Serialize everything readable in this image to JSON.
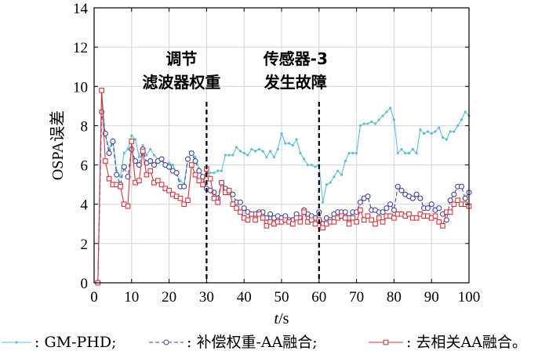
{
  "chart_data": {
    "type": "line",
    "xlabel_italic": "t",
    "xlabel_unit": "/s",
    "ylabel": "OSPA误差",
    "xlim": [
      0,
      100
    ],
    "ylim": [
      0,
      14
    ],
    "xticks": [
      0,
      10,
      20,
      30,
      40,
      50,
      60,
      70,
      80,
      90,
      100
    ],
    "yticks": [
      0,
      2,
      4,
      6,
      8,
      10,
      12,
      14
    ],
    "grid": true,
    "annotations": [
      {
        "lines": [
          "调节",
          "滤波器权重"
        ],
        "x_line": 30
      },
      {
        "lines": [
          "传感器-3",
          "发生故障"
        ],
        "x_line": 60
      }
    ],
    "legend_position": "bottom",
    "series": [
      {
        "name": "GM-PHD",
        "color": "#5bc0dc",
        "marker": "dot",
        "values": [
          [
            1,
            0
          ],
          [
            2,
            9.8
          ],
          [
            3,
            7.5
          ],
          [
            4,
            6.8
          ],
          [
            5,
            7.3
          ],
          [
            6,
            5.7
          ],
          [
            7,
            5.4
          ],
          [
            8,
            6.6
          ],
          [
            9,
            6.8
          ],
          [
            10,
            7.5
          ],
          [
            11,
            7.3
          ],
          [
            12,
            6.4
          ],
          [
            13,
            7.0
          ],
          [
            14,
            6.5
          ],
          [
            15,
            6.8
          ],
          [
            16,
            6.5
          ],
          [
            17,
            6.3
          ],
          [
            18,
            6.2
          ],
          [
            19,
            6.0
          ],
          [
            20,
            6.1
          ],
          [
            21,
            6.0
          ],
          [
            22,
            5.5
          ],
          [
            23,
            5.2
          ],
          [
            24,
            5.0
          ],
          [
            25,
            6.3
          ],
          [
            26,
            6.6
          ],
          [
            27,
            6.4
          ],
          [
            28,
            5.8
          ],
          [
            29,
            5.4
          ],
          [
            30,
            5.6
          ],
          [
            31,
            5.6
          ],
          [
            32,
            5.6
          ],
          [
            33,
            5.7
          ],
          [
            34,
            5.7
          ],
          [
            35,
            6.5
          ],
          [
            36,
            6.5
          ],
          [
            37,
            6.5
          ],
          [
            38,
            6.9
          ],
          [
            39,
            6.7
          ],
          [
            40,
            6.6
          ],
          [
            41,
            6.5
          ],
          [
            42,
            6.8
          ],
          [
            43,
            6.7
          ],
          [
            44,
            6.8
          ],
          [
            45,
            6.7
          ],
          [
            46,
            6.4
          ],
          [
            47,
            6.7
          ],
          [
            48,
            6.4
          ],
          [
            49,
            6.8
          ],
          [
            50,
            7.6
          ],
          [
            51,
            7.1
          ],
          [
            52,
            7.1
          ],
          [
            53,
            7.0
          ],
          [
            54,
            7.3
          ],
          [
            55,
            6.6
          ],
          [
            56,
            6.3
          ],
          [
            57,
            6.0
          ],
          [
            58,
            6.0
          ],
          [
            59,
            5.9
          ],
          [
            60,
            6.0
          ],
          [
            61,
            4.1
          ],
          [
            62,
            5.0
          ],
          [
            63,
            5.1
          ],
          [
            64,
            5.4
          ],
          [
            65,
            5.7
          ],
          [
            66,
            5.5
          ],
          [
            67,
            6.2
          ],
          [
            68,
            6.6
          ],
          [
            69,
            6.6
          ],
          [
            70,
            6.6
          ],
          [
            71,
            8.0
          ],
          [
            72,
            8.1
          ],
          [
            73,
            8.1
          ],
          [
            74,
            8.2
          ],
          [
            75,
            8.1
          ],
          [
            76,
            8.3
          ],
          [
            77,
            8.5
          ],
          [
            78,
            8.7
          ],
          [
            79,
            8.9
          ],
          [
            80,
            8.3
          ],
          [
            81,
            6.6
          ],
          [
            82,
            6.8
          ],
          [
            83,
            6.6
          ],
          [
            84,
            6.6
          ],
          [
            85,
            6.8
          ],
          [
            86,
            6.6
          ],
          [
            87,
            7.8
          ],
          [
            88,
            7.6
          ],
          [
            89,
            7.7
          ],
          [
            90,
            7.6
          ],
          [
            91,
            7.7
          ],
          [
            92,
            7.9
          ],
          [
            93,
            7.4
          ],
          [
            94,
            7.3
          ],
          [
            95,
            7.7
          ],
          [
            96,
            7.7
          ],
          [
            97,
            8.0
          ],
          [
            98,
            8.3
          ],
          [
            99,
            8.7
          ],
          [
            100,
            8.5
          ]
        ]
      },
      {
        "name": "补偿权重-AA融合",
        "color": "#3f47a6",
        "marker": "circle",
        "values": [
          [
            1,
            0
          ],
          [
            2,
            8.7
          ],
          [
            3,
            7.6
          ],
          [
            4,
            6.6
          ],
          [
            5,
            7.2
          ],
          [
            6,
            5.5
          ],
          [
            7,
            5.0
          ],
          [
            8,
            5.9
          ],
          [
            9,
            5.4
          ],
          [
            10,
            6.8
          ],
          [
            11,
            6.2
          ],
          [
            12,
            6.0
          ],
          [
            13,
            6.8
          ],
          [
            14,
            6.1
          ],
          [
            15,
            6.2
          ],
          [
            16,
            6.0
          ],
          [
            17,
            6.2
          ],
          [
            18,
            6.3
          ],
          [
            19,
            6.0
          ],
          [
            20,
            5.9
          ],
          [
            21,
            5.7
          ],
          [
            22,
            5.6
          ],
          [
            23,
            4.9
          ],
          [
            24,
            4.9
          ],
          [
            25,
            6.3
          ],
          [
            26,
            6.6
          ],
          [
            27,
            6.2
          ],
          [
            28,
            5.7
          ],
          [
            29,
            5.4
          ],
          [
            30,
            4.8
          ],
          [
            31,
            4.7
          ],
          [
            32,
            4.6
          ],
          [
            33,
            4.3
          ],
          [
            34,
            5.1
          ],
          [
            35,
            4.8
          ],
          [
            36,
            4.6
          ],
          [
            37,
            4.5
          ],
          [
            38,
            4.1
          ],
          [
            39,
            4.1
          ],
          [
            40,
            3.8
          ],
          [
            41,
            3.6
          ],
          [
            42,
            3.5
          ],
          [
            43,
            3.5
          ],
          [
            44,
            3.6
          ],
          [
            45,
            3.6
          ],
          [
            46,
            3.3
          ],
          [
            47,
            3.5
          ],
          [
            48,
            3.3
          ],
          [
            49,
            3.4
          ],
          [
            50,
            3.3
          ],
          [
            51,
            3.4
          ],
          [
            52,
            3.2
          ],
          [
            53,
            3.2
          ],
          [
            54,
            3.5
          ],
          [
            55,
            3.3
          ],
          [
            56,
            3.7
          ],
          [
            57,
            3.5
          ],
          [
            58,
            3.4
          ],
          [
            59,
            3.3
          ],
          [
            60,
            3.6
          ],
          [
            61,
            3.0
          ],
          [
            62,
            3.3
          ],
          [
            63,
            3.2
          ],
          [
            64,
            3.5
          ],
          [
            65,
            3.6
          ],
          [
            66,
            3.6
          ],
          [
            67,
            3.6
          ],
          [
            68,
            3.3
          ],
          [
            69,
            3.6
          ],
          [
            70,
            3.6
          ],
          [
            71,
            4.1
          ],
          [
            72,
            4.3
          ],
          [
            73,
            4.4
          ],
          [
            74,
            3.7
          ],
          [
            75,
            3.7
          ],
          [
            76,
            3.6
          ],
          [
            77,
            3.6
          ],
          [
            78,
            3.8
          ],
          [
            79,
            4.0
          ],
          [
            80,
            3.7
          ],
          [
            81,
            4.9
          ],
          [
            82,
            4.7
          ],
          [
            83,
            4.5
          ],
          [
            84,
            4.4
          ],
          [
            85,
            4.3
          ],
          [
            86,
            4.5
          ],
          [
            87,
            4.3
          ],
          [
            88,
            3.8
          ],
          [
            89,
            3.8
          ],
          [
            90,
            4.0
          ],
          [
            91,
            3.7
          ],
          [
            92,
            3.8
          ],
          [
            93,
            3.5
          ],
          [
            94,
            3.2
          ],
          [
            95,
            4.2
          ],
          [
            96,
            4.5
          ],
          [
            97,
            4.9
          ],
          [
            98,
            4.9
          ],
          [
            99,
            4.3
          ],
          [
            100,
            4.6
          ]
        ]
      },
      {
        "name": "去相关AA融合",
        "color": "#e0343c",
        "marker": "square",
        "values": [
          [
            1,
            0
          ],
          [
            2,
            9.8
          ],
          [
            3,
            6.2
          ],
          [
            4,
            5.3
          ],
          [
            5,
            5.0
          ],
          [
            6,
            5.0
          ],
          [
            7,
            4.9
          ],
          [
            8,
            4.0
          ],
          [
            9,
            3.9
          ],
          [
            10,
            7.2
          ],
          [
            11,
            5.1
          ],
          [
            12,
            5.2
          ],
          [
            13,
            6.7
          ],
          [
            14,
            5.5
          ],
          [
            15,
            5.7
          ],
          [
            16,
            5.1
          ],
          [
            17,
            5.2
          ],
          [
            18,
            5.0
          ],
          [
            19,
            4.8
          ],
          [
            20,
            4.7
          ],
          [
            21,
            4.5
          ],
          [
            22,
            4.4
          ],
          [
            23,
            4.3
          ],
          [
            24,
            4.0
          ],
          [
            25,
            4.2
          ],
          [
            26,
            6.0
          ],
          [
            27,
            5.5
          ],
          [
            28,
            5.2
          ],
          [
            29,
            5.0
          ],
          [
            30,
            5.8
          ],
          [
            31,
            5.3
          ],
          [
            32,
            4.3
          ],
          [
            33,
            4.1
          ],
          [
            34,
            5.1
          ],
          [
            35,
            4.6
          ],
          [
            36,
            4.7
          ],
          [
            37,
            4.0
          ],
          [
            38,
            3.8
          ],
          [
            39,
            3.6
          ],
          [
            40,
            3.3
          ],
          [
            41,
            3.2
          ],
          [
            42,
            3.5
          ],
          [
            43,
            3.2
          ],
          [
            44,
            3.5
          ],
          [
            45,
            3.3
          ],
          [
            46,
            2.9
          ],
          [
            47,
            3.1
          ],
          [
            48,
            3.0
          ],
          [
            49,
            3.1
          ],
          [
            50,
            3.1
          ],
          [
            51,
            3.2
          ],
          [
            52,
            3.1
          ],
          [
            53,
            3.0
          ],
          [
            54,
            3.3
          ],
          [
            55,
            3.1
          ],
          [
            56,
            3.6
          ],
          [
            57,
            3.1
          ],
          [
            58,
            3.2
          ],
          [
            59,
            3.0
          ],
          [
            60,
            3.2
          ],
          [
            61,
            2.8
          ],
          [
            62,
            3.0
          ],
          [
            63,
            3.1
          ],
          [
            64,
            3.1
          ],
          [
            65,
            3.3
          ],
          [
            66,
            3.4
          ],
          [
            67,
            3.3
          ],
          [
            68,
            3.0
          ],
          [
            69,
            3.3
          ],
          [
            70,
            3.1
          ],
          [
            71,
            3.7
          ],
          [
            72,
            3.2
          ],
          [
            73,
            3.4
          ],
          [
            74,
            3.2
          ],
          [
            75,
            3.0
          ],
          [
            76,
            3.3
          ],
          [
            77,
            3.1
          ],
          [
            78,
            3.4
          ],
          [
            79,
            3.4
          ],
          [
            80,
            3.3
          ],
          [
            81,
            3.5
          ],
          [
            82,
            3.5
          ],
          [
            83,
            3.4
          ],
          [
            84,
            3.5
          ],
          [
            85,
            3.3
          ],
          [
            86,
            3.3
          ],
          [
            87,
            3.5
          ],
          [
            88,
            3.4
          ],
          [
            89,
            3.4
          ],
          [
            90,
            3.3
          ],
          [
            91,
            3.4
          ],
          [
            92,
            3.1
          ],
          [
            93,
            2.9
          ],
          [
            94,
            3.6
          ],
          [
            95,
            3.6
          ],
          [
            96,
            4.0
          ],
          [
            97,
            4.2
          ],
          [
            98,
            4.0
          ],
          [
            99,
            4.0
          ],
          [
            100,
            3.9
          ]
        ]
      }
    ],
    "legend": [
      {
        "text": ": GM-PHD;"
      },
      {
        "text": ": 补偿权重-AA融合;"
      },
      {
        "text": ": 去相关AA融合。"
      }
    ]
  }
}
